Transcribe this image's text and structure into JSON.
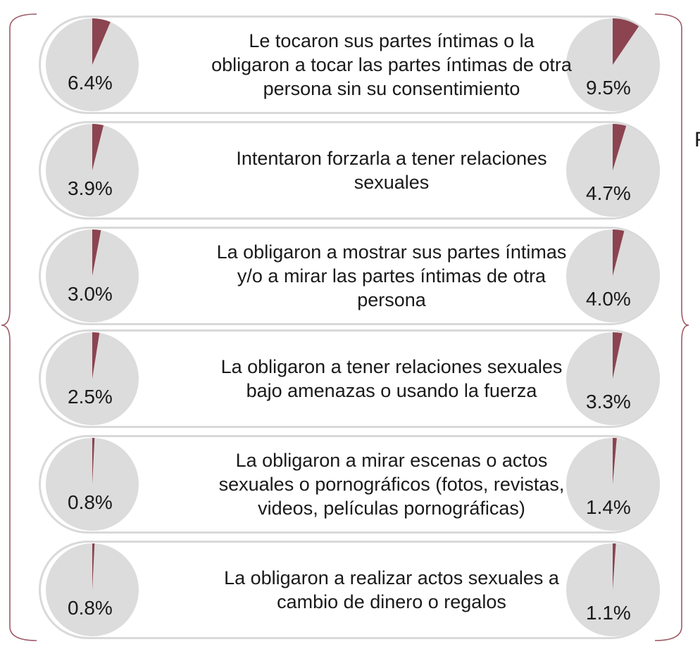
{
  "chart_data": {
    "type": "pie",
    "series": [
      {
        "values": [
          6.4,
          3.9,
          3.0,
          2.5,
          0.8,
          0.8
        ]
      },
      {
        "values": [
          9.5,
          4.7,
          4.0,
          3.3,
          1.4,
          1.1
        ]
      }
    ],
    "categories": [
      "Le tocaron sus partes íntimas o la obligaron a tocar las partes íntimas de otra persona sin su consentimiento",
      "Intentaron forzarla a tener relaciones sexuales",
      "La obligaron a mostrar sus partes íntimas y/o a mirar las partes íntimas de otra persona",
      "La obligaron a tener relaciones sexuales bajo amenazas o usando la fuerza",
      "La obligaron a mirar escenas o actos sexuales o pornográficos (fotos, revistas, videos, películas pornográficas)",
      "La obligaron a realizar actos sexuales a cambio de dinero o regalos"
    ],
    "value_labels_left": [
      "6.4%",
      "3.9%",
      "3.0%",
      "2.5%",
      "0.8%",
      "0.8%"
    ],
    "value_labels_right": [
      "9.5%",
      "4.7%",
      "4.0%",
      "3.3%",
      "1.4%",
      "1.1%"
    ]
  },
  "rows": [
    {
      "lines": [
        "Le tocaron sus partes íntimas o la",
        "obligaron a tocar las partes íntimas de otra",
        "persona sin su consentimiento"
      ]
    },
    {
      "lines": [
        "Intentaron forzarla a tener relaciones",
        "sexuales"
      ]
    },
    {
      "lines": [
        "La obligaron a mostrar sus partes íntimas",
        "y/o a mirar las partes íntimas de otra",
        "persona"
      ]
    },
    {
      "lines": [
        "La obligaron a tener relaciones sexuales",
        "bajo amenazas o usando la fuerza"
      ]
    },
    {
      "lines": [
        "La obligaron a mirar escenas o actos",
        "sexuales o pornográficos (fotos, revistas,",
        "videos, películas pornográficas)"
      ]
    },
    {
      "lines": [
        "La obligaron a realizar actos sexuales a",
        "cambio de dinero o regalos"
      ]
    }
  ],
  "colors": {
    "slice": "#8b4450",
    "pie_bg": "#dcdcdc",
    "pill_border": "#d9d9d9",
    "brace": "#9e5a66"
  },
  "cut_text": "F"
}
